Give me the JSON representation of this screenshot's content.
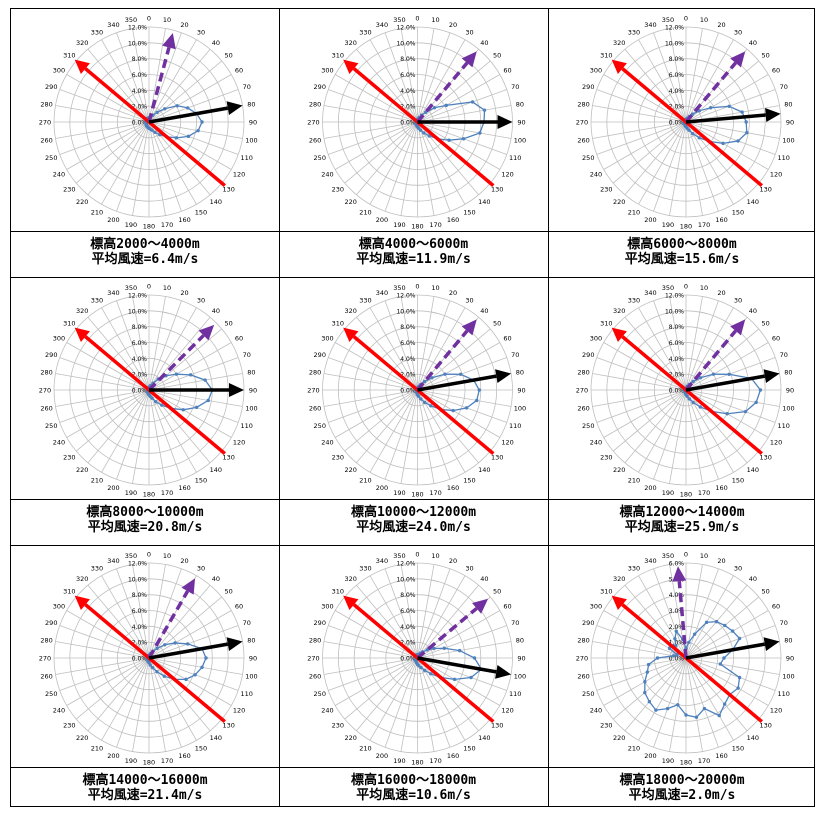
{
  "angle_labels": [
    "0",
    "10",
    "20",
    "30",
    "40",
    "50",
    "60",
    "70",
    "80",
    "90",
    "100",
    "110",
    "120",
    "130",
    "140",
    "150",
    "160",
    "170",
    "180",
    "190",
    "200",
    "210",
    "220",
    "230",
    "240",
    "250",
    "260",
    "270",
    "280",
    "290",
    "300",
    "310",
    "320",
    "330",
    "340",
    "350"
  ],
  "colors": {
    "series": "#4F81BD",
    "red_arrow": "#FF0000",
    "black_arrow": "#000000",
    "purple_arrow": "#7030A0",
    "grid": "#BFBFBF"
  },
  "chart_data": [
    {
      "type": "polar-line",
      "caption": {
        "line1": "標高2000～4000m",
        "line2": "平均風速=6.4m/s"
      },
      "radial_ticks": [
        "0.0%",
        "2.0%",
        "4.0%",
        "6.0%",
        "8.0%",
        "10.0%",
        "12.0%"
      ],
      "rmax": 12,
      "red_arrow_deg": [
        130,
        310
      ],
      "black_arrow_deg": 80,
      "purple_arrow_deg": 15,
      "series": [
        0.5,
        0.6,
        0.8,
        1.0,
        1.6,
        2.6,
        4.1,
        5.2,
        6.1,
        6.7,
        6.3,
        5.3,
        4.0,
        2.9,
        2.1,
        1.5,
        1.1,
        0.9,
        0.8,
        0.7,
        0.6,
        0.6,
        0.5,
        0.5,
        0.4,
        0.4,
        0.4,
        0.4,
        0.4,
        0.4,
        0.4,
        0.5,
        0.5,
        0.5,
        0.5,
        0.5
      ]
    },
    {
      "type": "polar-line",
      "caption": {
        "line1": "標高4000～6000m",
        "line2": "平均風速=11.9m/s"
      },
      "radial_ticks": [
        "0.0%",
        "2.0%",
        "4.0%",
        "6.0%",
        "8.0%",
        "10.0%",
        "12.0%"
      ],
      "rmax": 12,
      "red_arrow_deg": [
        130,
        310
      ],
      "black_arrow_deg": 90,
      "purple_arrow_deg": 40,
      "series": [
        0.3,
        0.4,
        0.6,
        1.0,
        1.6,
        2.8,
        4.2,
        7.4,
        8.6,
        8.4,
        8.0,
        6.2,
        4.6,
        3.3,
        2.3,
        1.6,
        1.1,
        0.8,
        0.6,
        0.5,
        0.4,
        0.3,
        0.3,
        0.3,
        0.2,
        0.2,
        0.2,
        0.2,
        0.2,
        0.2,
        0.2,
        0.2,
        0.3,
        0.3,
        0.3,
        0.3
      ]
    },
    {
      "type": "polar-line",
      "caption": {
        "line1": "標高6000～8000m",
        "line2": "平均風速=15.6m/s"
      },
      "radial_ticks": [
        "0.0%",
        "2.0%",
        "4.0%",
        "6.0%",
        "8.0%",
        "10.0%",
        "12.0%"
      ],
      "rmax": 12,
      "red_arrow_deg": [
        130,
        310
      ],
      "black_arrow_deg": 85,
      "purple_arrow_deg": 40,
      "series": [
        0.3,
        0.4,
        0.5,
        0.8,
        1.3,
        2.2,
        3.6,
        5.8,
        7.2,
        7.6,
        7.8,
        7.0,
        5.4,
        3.8,
        2.6,
        1.7,
        1.1,
        0.8,
        0.6,
        0.5,
        0.4,
        0.3,
        0.3,
        0.3,
        0.2,
        0.2,
        0.2,
        0.2,
        0.2,
        0.2,
        0.2,
        0.2,
        0.3,
        0.3,
        0.3,
        0.3
      ]
    },
    {
      "type": "polar-line",
      "caption": {
        "line1": "標高8000～10000m",
        "line2": "平均風速=20.8m/s"
      },
      "radial_ticks": [
        "0.0%",
        "2.0%",
        "4.0%",
        "6.0%",
        "8.0%",
        "10.0%",
        "12.0%"
      ],
      "rmax": 12,
      "red_arrow_deg": [
        130,
        310
      ],
      "black_arrow_deg": 90,
      "purple_arrow_deg": 45,
      "series": [
        0.3,
        0.4,
        0.6,
        1.0,
        1.8,
        2.8,
        4.0,
        5.6,
        7.2,
        8.0,
        7.6,
        6.4,
        5.0,
        3.6,
        2.5,
        1.7,
        1.1,
        0.8,
        0.6,
        0.5,
        0.4,
        0.3,
        0.3,
        0.3,
        0.2,
        0.2,
        0.2,
        0.2,
        0.2,
        0.2,
        0.2,
        0.2,
        0.3,
        0.3,
        0.3,
        0.3
      ]
    },
    {
      "type": "polar-line",
      "caption": {
        "line1": "標高10000～12000m",
        "line2": "平均風速=24.0m/s"
      },
      "radial_ticks": [
        "0.0%",
        "2.0%",
        "4.0%",
        "6.0%",
        "8.0%",
        "10.0%",
        "12.0%"
      ],
      "rmax": 12,
      "red_arrow_deg": [
        130,
        310
      ],
      "black_arrow_deg": 80,
      "purple_arrow_deg": 40,
      "series": [
        0.2,
        0.3,
        0.5,
        0.8,
        1.4,
        2.4,
        4.0,
        5.8,
        7.2,
        7.8,
        7.6,
        6.6,
        5.2,
        3.8,
        2.6,
        1.8,
        1.2,
        0.8,
        0.6,
        0.4,
        0.3,
        0.3,
        0.2,
        0.2,
        0.2,
        0.2,
        0.2,
        0.2,
        0.2,
        0.2,
        0.2,
        0.2,
        0.2,
        0.2,
        0.2,
        0.2
      ]
    },
    {
      "type": "polar-line",
      "caption": {
        "line1": "標高12000～14000m",
        "line2": "平均風速=25.9m/s"
      },
      "radial_ticks": [
        "0.0%",
        "2.0%",
        "4.0%",
        "6.0%",
        "8.0%",
        "10.0%",
        "12.0%"
      ],
      "rmax": 12,
      "red_arrow_deg": [
        130,
        310
      ],
      "black_arrow_deg": 80,
      "purple_arrow_deg": 40,
      "series": [
        0.2,
        0.3,
        0.5,
        0.8,
        1.4,
        2.4,
        4.0,
        5.8,
        8.4,
        9.4,
        9.0,
        8.0,
        6.0,
        4.2,
        2.8,
        1.8,
        1.2,
        0.8,
        0.6,
        0.4,
        0.3,
        0.3,
        0.2,
        0.2,
        0.2,
        0.2,
        0.2,
        0.2,
        0.2,
        0.2,
        0.2,
        0.2,
        0.2,
        0.2,
        0.2,
        0.2
      ]
    },
    {
      "type": "polar-line",
      "caption": {
        "line1": "標高14000～16000m",
        "line2": "平均風速=21.4m/s"
      },
      "radial_ticks": [
        "0.0%",
        "2.0%",
        "4.0%",
        "6.0%",
        "8.0%",
        "10.0%",
        "12.0%"
      ],
      "rmax": 12,
      "red_arrow_deg": [
        130,
        310
      ],
      "black_arrow_deg": 80,
      "purple_arrow_deg": 30,
      "series": [
        0.3,
        0.4,
        0.6,
        1.0,
        1.6,
        2.6,
        3.8,
        5.2,
        6.8,
        7.2,
        6.8,
        6.2,
        5.4,
        4.2,
        3.0,
        2.0,
        1.3,
        0.9,
        0.6,
        0.5,
        0.4,
        0.3,
        0.3,
        0.3,
        0.2,
        0.2,
        0.2,
        0.2,
        0.2,
        0.2,
        0.2,
        0.2,
        0.3,
        0.3,
        0.3,
        0.3
      ]
    },
    {
      "type": "polar-line",
      "caption": {
        "line1": "標高16000～18000m",
        "line2": "平均風速=10.6m/s"
      },
      "radial_ticks": [
        "0.0%",
        "2.0%",
        "4.0%",
        "6.0%",
        "8.0%",
        "10.0%",
        "12.0%"
      ],
      "rmax": 12,
      "red_arrow_deg": [
        130,
        310
      ],
      "black_arrow_deg": 100,
      "purple_arrow_deg": 50,
      "series": [
        0.4,
        0.4,
        0.5,
        0.7,
        1.0,
        1.6,
        2.4,
        3.6,
        5.4,
        7.2,
        8.2,
        7.2,
        5.4,
        3.8,
        2.6,
        1.8,
        1.3,
        1.0,
        0.8,
        0.6,
        0.5,
        0.4,
        0.4,
        0.4,
        0.3,
        0.3,
        0.3,
        0.3,
        0.3,
        0.3,
        0.3,
        0.3,
        0.3,
        0.4,
        0.4,
        0.4
      ]
    },
    {
      "type": "polar-line",
      "caption": {
        "line1": "標高18000～20000m",
        "line2": "平均風速=2.0m/s"
      },
      "radial_ticks": [
        "0.0%",
        "1.0%",
        "2.0%",
        "3.0%",
        "4.0%",
        "5.0%",
        "6.0%"
      ],
      "rmax": 6,
      "red_arrow_deg": [
        130,
        310
      ],
      "black_arrow_deg": 80,
      "purple_arrow_deg": 355,
      "series": [
        0.6,
        1.0,
        1.6,
        2.6,
        3.0,
        3.2,
        3.4,
        3.6,
        3.0,
        2.4,
        2.2,
        3.6,
        3.8,
        3.6,
        3.8,
        4.2,
        3.4,
        3.8,
        3.6,
        3.0,
        3.4,
        3.8,
        3.6,
        3.4,
        3.0,
        2.6,
        2.4,
        1.8,
        0.8,
        0.6,
        1.2,
        1.4,
        1.0,
        1.4,
        1.8,
        1.2
      ]
    }
  ]
}
